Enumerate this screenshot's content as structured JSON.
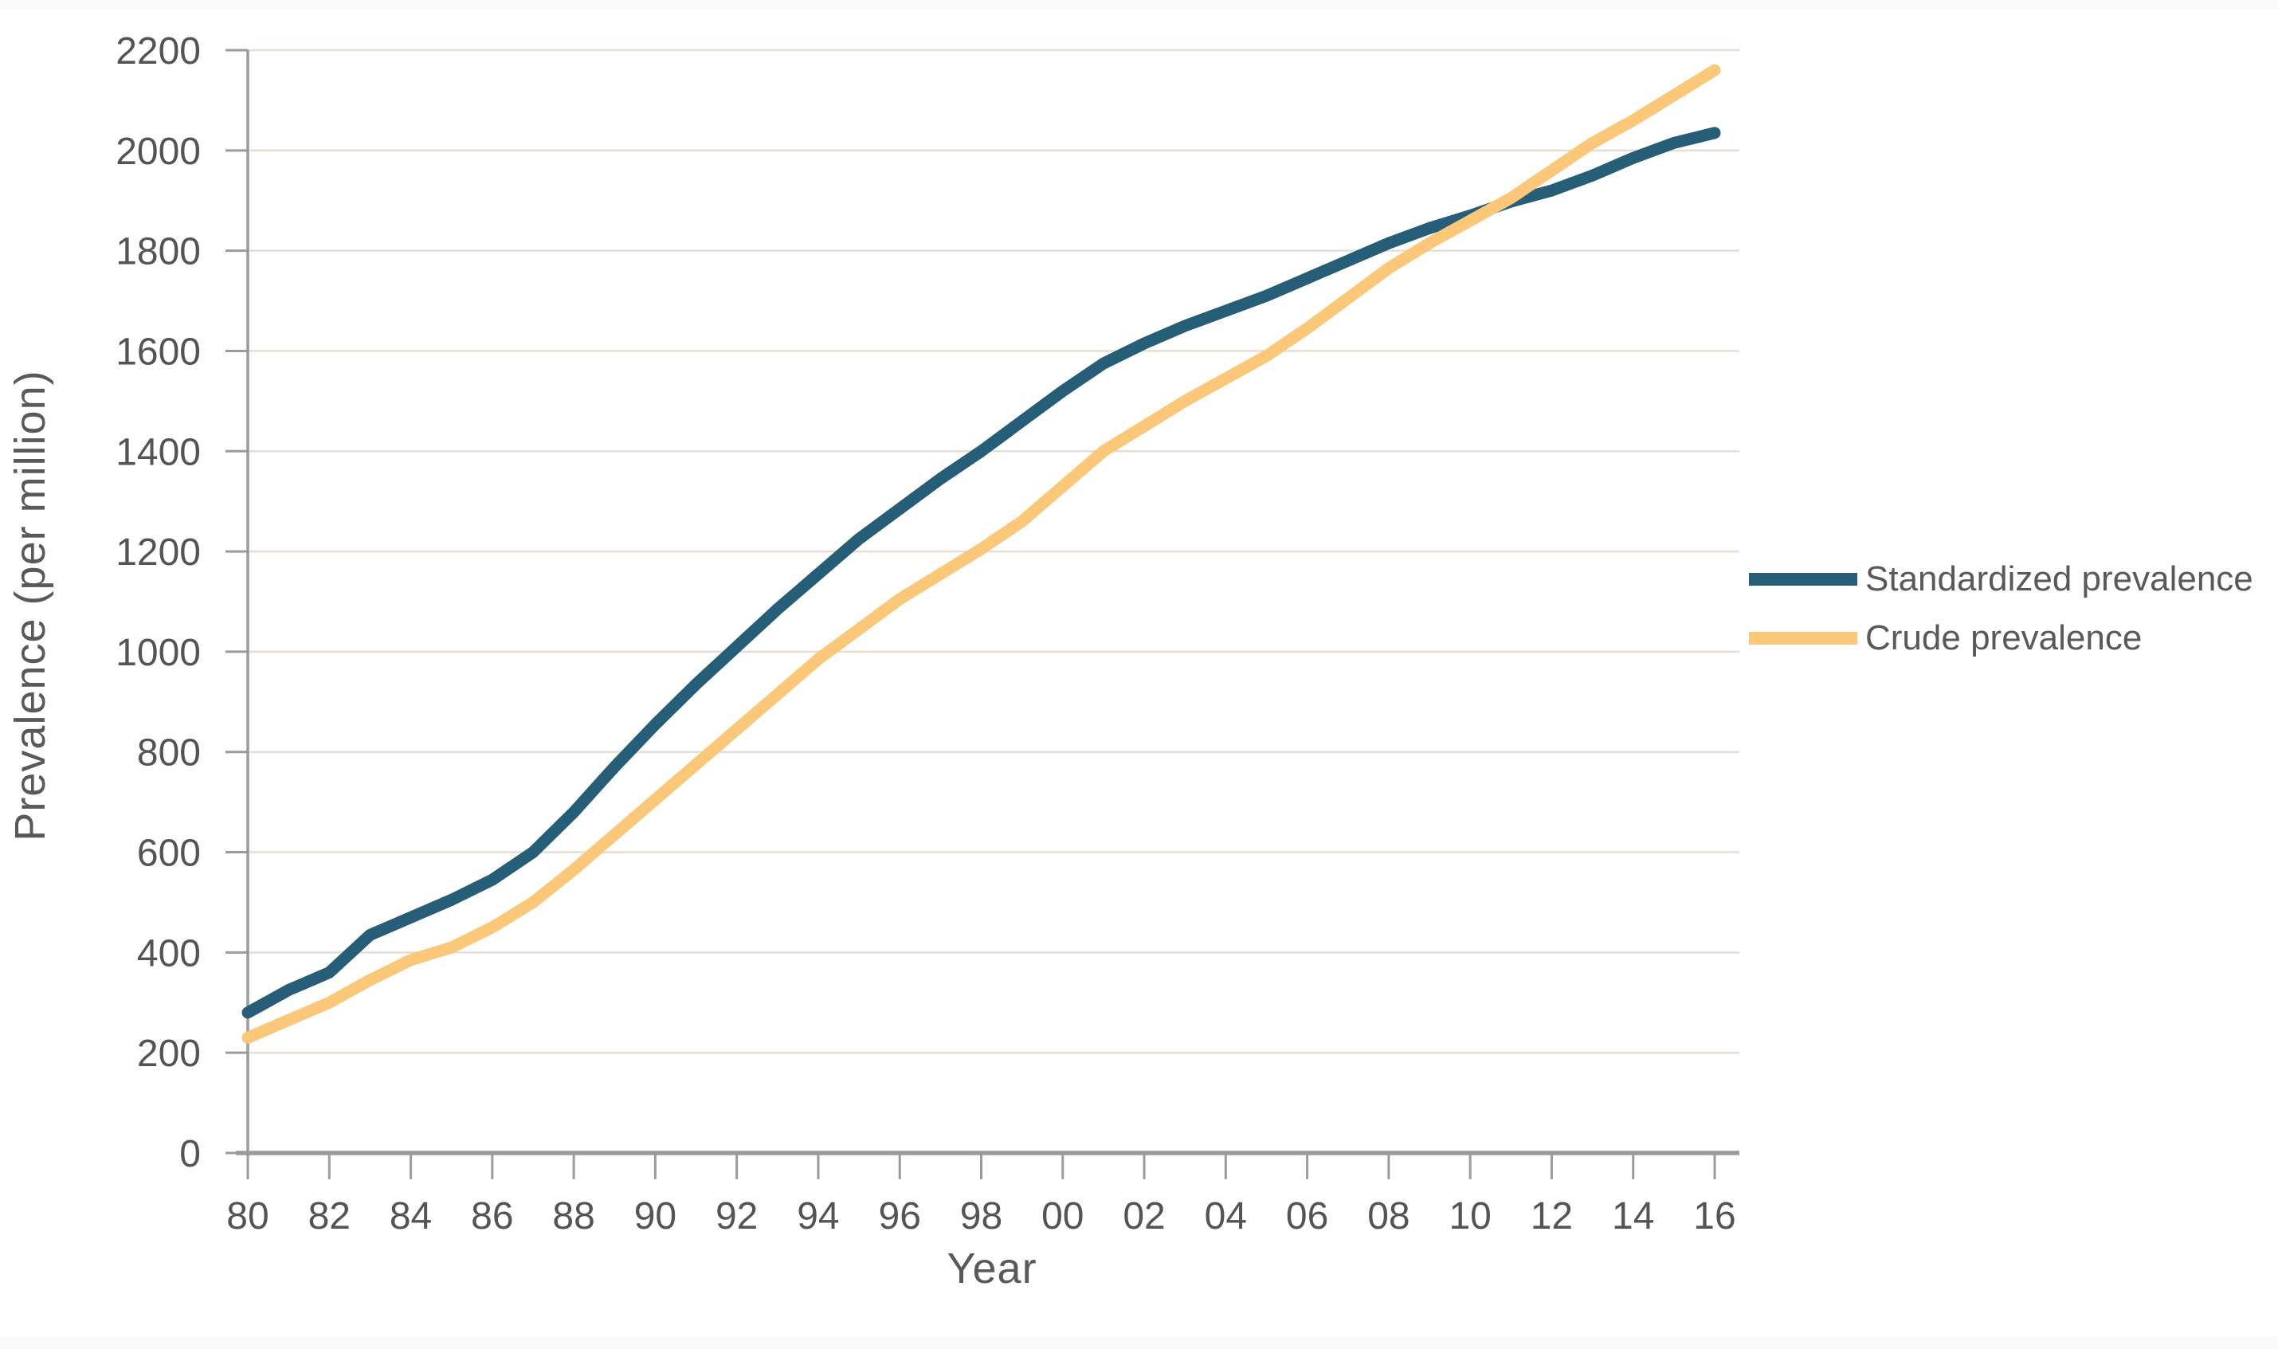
{
  "page": {
    "background_color": "#FFFFFF",
    "edge_band_color": "#FAFAFA"
  },
  "chart_data": {
    "type": "line",
    "title": "",
    "xlabel": "Year",
    "ylabel": "Prevalence (per million)",
    "x_years": [
      1980,
      1981,
      1982,
      1983,
      1984,
      1985,
      1986,
      1987,
      1988,
      1989,
      1990,
      1991,
      1992,
      1993,
      1994,
      1995,
      1996,
      1997,
      1998,
      1999,
      2000,
      2001,
      2002,
      2003,
      2004,
      2005,
      2006,
      2007,
      2008,
      2009,
      2010,
      2011,
      2012,
      2013,
      2014,
      2015,
      2016
    ],
    "xtick_years": [
      1980,
      1982,
      1984,
      1986,
      1988,
      1990,
      1992,
      1994,
      1996,
      1998,
      2000,
      2002,
      2004,
      2006,
      2008,
      2010,
      2012,
      2014,
      2016
    ],
    "xtick_labels": [
      "80",
      "82",
      "84",
      "86",
      "88",
      "90",
      "92",
      "94",
      "96",
      "98",
      "00",
      "02",
      "04",
      "06",
      "08",
      "10",
      "12",
      "14",
      "16"
    ],
    "ylim": [
      0,
      2200
    ],
    "ytick_step": 200,
    "ytick_labels": [
      "0",
      "200",
      "400",
      "600",
      "800",
      "1000",
      "1200",
      "1400",
      "1600",
      "1800",
      "2000",
      "2200"
    ],
    "grid": "horizontal-only",
    "legend_position": "right",
    "series": [
      {
        "name": "Standardized prevalence",
        "color": "#265E78",
        "values": [
          280,
          325,
          360,
          435,
          470,
          505,
          545,
          600,
          680,
          770,
          855,
          935,
          1010,
          1085,
          1155,
          1225,
          1285,
          1345,
          1400,
          1460,
          1520,
          1575,
          1615,
          1650,
          1680,
          1710,
          1745,
          1780,
          1815,
          1845,
          1870,
          1898,
          1920,
          1950,
          1985,
          2015,
          2035
        ]
      },
      {
        "name": "Crude prevalence",
        "color": "#FAC878",
        "values": [
          230,
          265,
          300,
          345,
          385,
          410,
          450,
          500,
          565,
          635,
          705,
          775,
          845,
          915,
          985,
          1045,
          1105,
          1155,
          1205,
          1260,
          1330,
          1400,
          1450,
          1500,
          1545,
          1590,
          1645,
          1705,
          1765,
          1815,
          1860,
          1905,
          1960,
          2015,
          2060,
          2110,
          2160
        ]
      }
    ],
    "axis_color": "#9B9B9B",
    "gridline_color": "#E6DDD7",
    "text_color": "#545454"
  }
}
